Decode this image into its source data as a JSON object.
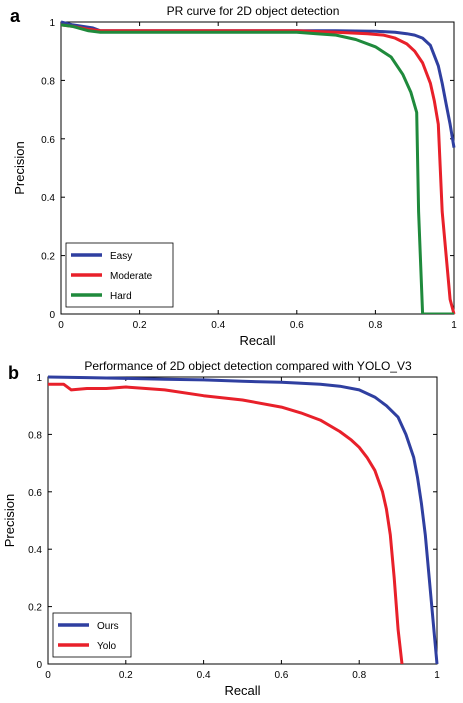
{
  "chart_data": [
    {
      "panel_label": "a",
      "type": "line",
      "title": "PR curve for 2D object detection",
      "xlabel": "Recall",
      "ylabel": "Precision",
      "xlim": [
        0,
        1
      ],
      "ylim": [
        0,
        1
      ],
      "xticks": [
        "0",
        "0.2",
        "0.4",
        "0.6",
        "0.8",
        "1"
      ],
      "yticks": [
        "0",
        "0.2",
        "0.4",
        "0.6",
        "0.8",
        "1"
      ],
      "grid": false,
      "legend_position": "bottom-left",
      "series": [
        {
          "name": "Easy",
          "color": "#2f3fa0",
          "x": [
            0,
            0.03,
            0.08,
            0.1,
            0.2,
            0.4,
            0.6,
            0.7,
            0.8,
            0.85,
            0.88,
            0.9,
            0.92,
            0.94,
            0.96,
            0.97,
            0.98,
            0.99,
            1.0
          ],
          "y": [
            1.0,
            0.99,
            0.98,
            0.97,
            0.97,
            0.97,
            0.97,
            0.97,
            0.968,
            0.965,
            0.96,
            0.955,
            0.945,
            0.92,
            0.85,
            0.79,
            0.72,
            0.65,
            0.57
          ]
        },
        {
          "name": "Moderate",
          "color": "#e8202a",
          "x": [
            0,
            0.03,
            0.07,
            0.1,
            0.2,
            0.4,
            0.6,
            0.7,
            0.78,
            0.82,
            0.85,
            0.88,
            0.9,
            0.92,
            0.94,
            0.95,
            0.96,
            0.97,
            0.99,
            1.0,
            1.0
          ],
          "y": [
            0.99,
            0.985,
            0.975,
            0.97,
            0.97,
            0.97,
            0.97,
            0.965,
            0.96,
            0.955,
            0.945,
            0.925,
            0.9,
            0.86,
            0.79,
            0.73,
            0.65,
            0.35,
            0.05,
            0.0,
            0.0
          ]
        },
        {
          "name": "Hard",
          "color": "#1f8a3c",
          "x": [
            0,
            0.03,
            0.07,
            0.1,
            0.2,
            0.4,
            0.6,
            0.65,
            0.7,
            0.75,
            0.8,
            0.84,
            0.87,
            0.89,
            0.905,
            0.91,
            0.92,
            0.93,
            1.0
          ],
          "y": [
            0.99,
            0.985,
            0.97,
            0.965,
            0.965,
            0.965,
            0.965,
            0.96,
            0.955,
            0.94,
            0.915,
            0.88,
            0.82,
            0.76,
            0.69,
            0.35,
            0.0,
            0.0,
            0.0
          ]
        }
      ]
    },
    {
      "panel_label": "b",
      "type": "line",
      "title": "Performance of 2D object detection compared with YOLO_V3",
      "xlabel": "Recall",
      "ylabel": "Precision",
      "xlim": [
        0,
        1
      ],
      "ylim": [
        0,
        1
      ],
      "xticks": [
        "0",
        "0.2",
        "0.4",
        "0.6",
        "0.8",
        "1"
      ],
      "yticks": [
        "0",
        "0.2",
        "0.4",
        "0.6",
        "0.8",
        "1"
      ],
      "grid": false,
      "legend_position": "bottom-left",
      "series": [
        {
          "name": "Ours",
          "color": "#2f3fa0",
          "x": [
            0,
            0.1,
            0.2,
            0.3,
            0.4,
            0.5,
            0.6,
            0.7,
            0.75,
            0.8,
            0.84,
            0.87,
            0.9,
            0.92,
            0.94,
            0.95,
            0.96,
            0.97,
            0.98,
            0.99,
            1.0
          ],
          "y": [
            1.0,
            0.998,
            0.995,
            0.992,
            0.99,
            0.985,
            0.982,
            0.975,
            0.968,
            0.955,
            0.93,
            0.9,
            0.86,
            0.8,
            0.72,
            0.65,
            0.56,
            0.45,
            0.3,
            0.15,
            0.0
          ]
        },
        {
          "name": "Yolo",
          "color": "#e8202a",
          "x": [
            0,
            0.04,
            0.06,
            0.1,
            0.15,
            0.2,
            0.3,
            0.4,
            0.5,
            0.6,
            0.65,
            0.7,
            0.75,
            0.78,
            0.8,
            0.82,
            0.84,
            0.86,
            0.87,
            0.88,
            0.89,
            0.9,
            0.91,
            0.91
          ],
          "y": [
            0.975,
            0.975,
            0.955,
            0.96,
            0.96,
            0.965,
            0.955,
            0.935,
            0.92,
            0.895,
            0.875,
            0.85,
            0.81,
            0.78,
            0.755,
            0.72,
            0.675,
            0.6,
            0.54,
            0.45,
            0.3,
            0.12,
            0.0,
            0.0
          ]
        }
      ]
    }
  ]
}
